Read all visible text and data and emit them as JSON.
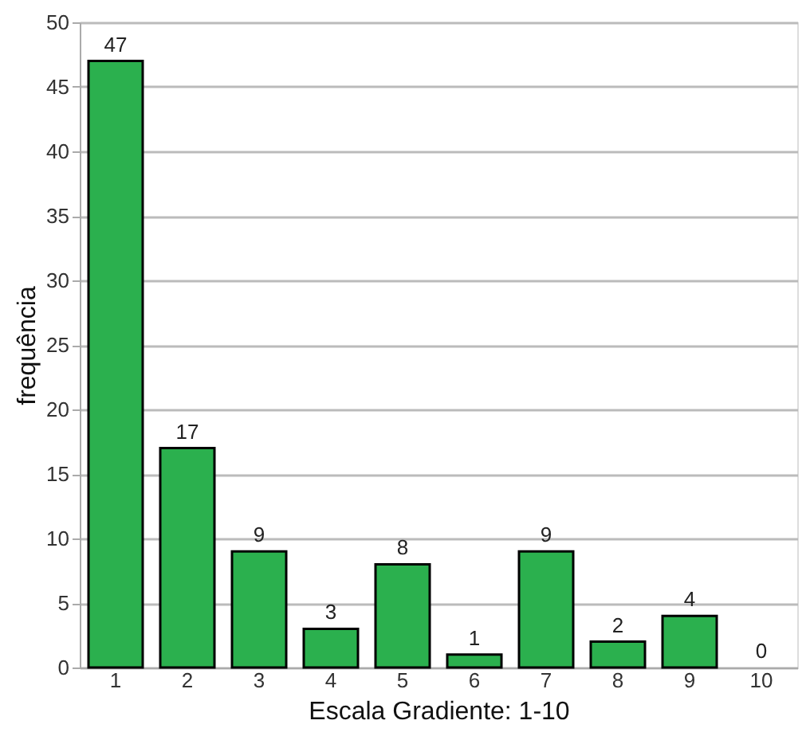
{
  "chart_data": {
    "type": "bar",
    "xlabel": "Escala Gradiente: 1-10",
    "ylabel": "frequência",
    "categories": [
      "1",
      "2",
      "3",
      "4",
      "5",
      "6",
      "7",
      "8",
      "9",
      "10"
    ],
    "values": [
      47,
      17,
      9,
      3,
      8,
      1,
      9,
      2,
      4,
      0
    ],
    "color": "#2bb04e",
    "ylim": [
      0,
      50
    ],
    "yticks": [
      0,
      5,
      10,
      15,
      20,
      25,
      30,
      35,
      40,
      45,
      50
    ],
    "grid": "y",
    "data_labels": true
  }
}
